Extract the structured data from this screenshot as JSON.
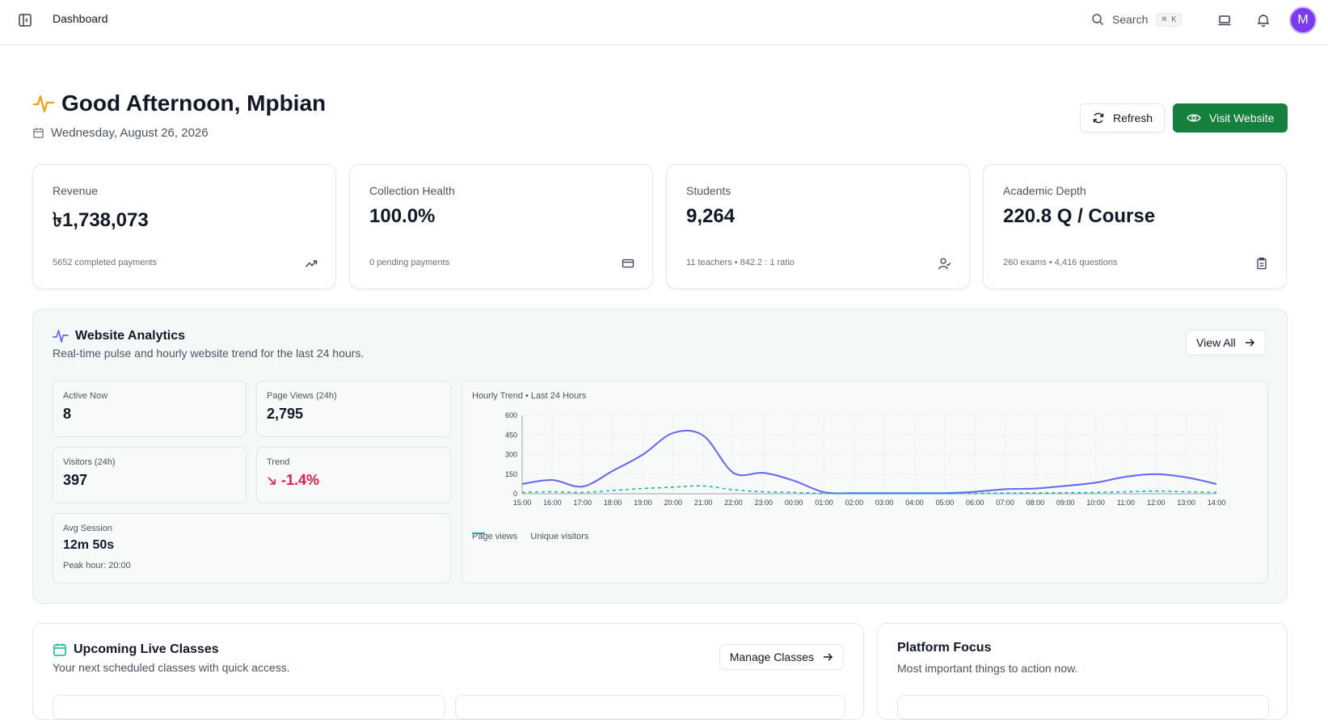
{
  "topbar": {
    "title": "Dashboard",
    "search_label": "Search",
    "search_shortcut": "⌘ K",
    "avatar_initial": "M"
  },
  "greeting": {
    "title": "Good Afternoon, Mpbian",
    "date": "Wednesday, August 26, 2026",
    "refresh_label": "Refresh",
    "visit_label": "Visit Website"
  },
  "stats": [
    {
      "label": "Revenue",
      "value": "৳1,738,073",
      "sub": "5652 completed payments",
      "icon": "trending-up-icon"
    },
    {
      "label": "Collection Health",
      "value": "100.0%",
      "sub": "0 pending payments",
      "icon": "credit-card-icon"
    },
    {
      "label": "Students",
      "value": "9,264",
      "sub": "11 teachers • 842.2 : 1 ratio",
      "icon": "user-check-icon"
    },
    {
      "label": "Academic Depth",
      "value": "220.8 Q / Course",
      "sub": "260 exams • 4,416 questions",
      "icon": "clipboard-icon"
    }
  ],
  "analytics": {
    "title": "Website Analytics",
    "subtitle": "Real-time pulse and hourly website trend for the last 24 hours.",
    "view_all_label": "View All",
    "active_now_label": "Active Now",
    "active_now_value": "8",
    "page_views_label": "Page Views (24h)",
    "page_views_value": "2,795",
    "visitors_label": "Visitors (24h)",
    "visitors_value": "397",
    "trend_label": "Trend",
    "trend_value": "-1.4%",
    "avg_session_label": "Avg Session",
    "avg_session_value": "12m 50s",
    "peak_hour": "Peak hour: 20:00",
    "chart_title": "Hourly Trend • Last 24 Hours",
    "colors": {
      "page_views": "#6366f1",
      "unique_visitors": "#14b8a6",
      "trend_negative": "#e11d48"
    }
  },
  "chart_data": {
    "type": "line",
    "title": "Hourly Trend • Last 24 Hours",
    "x": [
      "15:00",
      "16:00",
      "17:00",
      "18:00",
      "19:00",
      "20:00",
      "21:00",
      "22:00",
      "23:00",
      "00:00",
      "01:00",
      "02:00",
      "03:00",
      "04:00",
      "05:00",
      "06:00",
      "07:00",
      "08:00",
      "09:00",
      "10:00",
      "11:00",
      "12:00",
      "13:00",
      "14:00"
    ],
    "ylim": [
      0,
      600
    ],
    "yticks": [
      0,
      150,
      300,
      450,
      600
    ],
    "grid": true,
    "legend": "bottom-left",
    "series": [
      {
        "name": "Page views",
        "style": "solid",
        "color": "#6366f1",
        "values": [
          75,
          105,
          55,
          175,
          300,
          465,
          445,
          160,
          160,
          100,
          12,
          5,
          5,
          5,
          5,
          15,
          35,
          40,
          60,
          85,
          130,
          150,
          125,
          75
        ]
      },
      {
        "name": "Unique visitors",
        "style": "dashed",
        "color": "#14b8a6",
        "values": [
          10,
          15,
          10,
          25,
          40,
          50,
          60,
          30,
          15,
          10,
          2,
          1,
          1,
          1,
          1,
          3,
          5,
          6,
          8,
          10,
          15,
          20,
          15,
          10
        ]
      }
    ]
  },
  "classes": {
    "title": "Upcoming Live Classes",
    "subtitle": "Your next scheduled classes with quick access.",
    "manage_label": "Manage Classes"
  },
  "focus": {
    "title": "Platform Focus",
    "subtitle": "Most important things to action now."
  }
}
